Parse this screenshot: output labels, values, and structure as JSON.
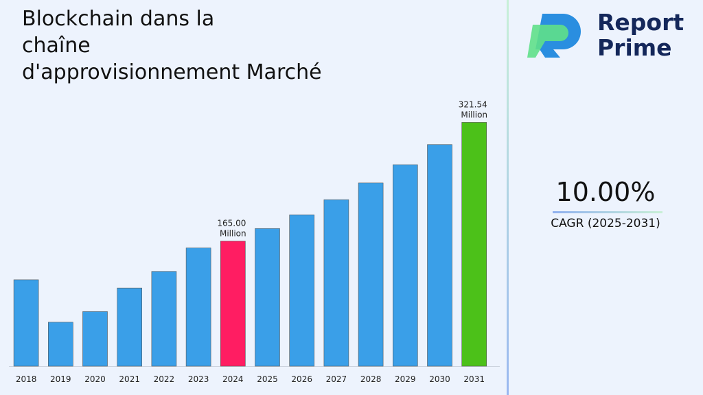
{
  "chart_data": {
    "type": "bar",
    "title": "Blockchain dans la\nchaîne\nd'approvisionnement Marché",
    "categories": [
      "2018",
      "2019",
      "2020",
      "2021",
      "2022",
      "2023",
      "2024",
      "2025",
      "2026",
      "2027",
      "2028",
      "2029",
      "2030",
      "2031"
    ],
    "values": [
      114,
      58,
      72,
      103,
      125,
      156,
      165.0,
      181.5,
      199.65,
      219.6,
      241.6,
      265.7,
      292.3,
      321.54
    ],
    "value_labels": [
      null,
      null,
      null,
      null,
      null,
      null,
      "165.00 Million",
      null,
      null,
      null,
      null,
      null,
      null,
      "321.54 Million"
    ],
    "colors": [
      "#3a9fe8",
      "#3a9fe8",
      "#3a9fe8",
      "#3a9fe8",
      "#3a9fe8",
      "#3a9fe8",
      "#ff1d62",
      "#3a9fe8",
      "#3a9fe8",
      "#3a9fe8",
      "#3a9fe8",
      "#3a9fe8",
      "#3a9fe8",
      "#4cc119"
    ],
    "ylim": [
      0,
      340
    ]
  },
  "sidebar": {
    "brand": [
      "Report",
      "Prime"
    ],
    "cagr": "10.00%",
    "cagr_label": "CAGR (2025-2031)"
  }
}
